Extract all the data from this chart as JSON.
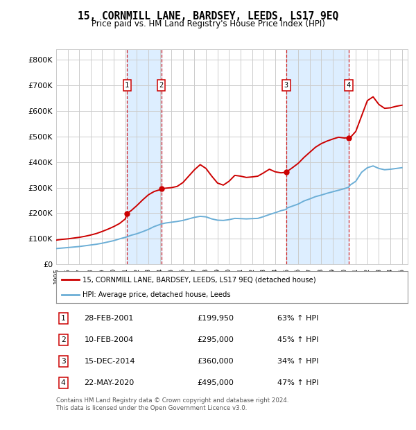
{
  "title": "15, CORNMILL LANE, BARDSEY, LEEDS, LS17 9EQ",
  "subtitle": "Price paid vs. HM Land Registry's House Price Index (HPI)",
  "legend_line1": "15, CORNMILL LANE, BARDSEY, LEEDS, LS17 9EQ (detached house)",
  "legend_line2": "HPI: Average price, detached house, Leeds",
  "footnote": "Contains HM Land Registry data © Crown copyright and database right 2024.\nThis data is licensed under the Open Government Licence v3.0.",
  "sales": [
    {
      "label": "1",
      "date": "28-FEB-2001",
      "price": 199950,
      "pct": "63%",
      "dir": "↑",
      "x_year": 2001.15
    },
    {
      "label": "2",
      "date": "10-FEB-2004",
      "price": 295000,
      "pct": "45%",
      "dir": "↑",
      "x_year": 2004.12
    },
    {
      "label": "3",
      "date": "15-DEC-2014",
      "price": 360000,
      "pct": "34%",
      "dir": "↑",
      "x_year": 2014.96
    },
    {
      "label": "4",
      "date": "22-MAY-2020",
      "price": 495000,
      "pct": "47%",
      "dir": "↑",
      "x_year": 2020.39
    }
  ],
  "hpi_color": "#6baed6",
  "price_color": "#cc0000",
  "shading_color": "#ddeeff",
  "background_color": "#ffffff",
  "grid_color": "#cccccc",
  "ylim": [
    0,
    840000
  ],
  "yticks": [
    0,
    100000,
    200000,
    300000,
    400000,
    500000,
    600000,
    700000,
    800000
  ],
  "xmin": 1995,
  "xmax": 2025.5,
  "hpi_data": {
    "years": [
      1995.0,
      1995.5,
      1996.0,
      1996.5,
      1997.0,
      1997.5,
      1998.0,
      1998.5,
      1999.0,
      1999.5,
      2000.0,
      2000.5,
      2001.0,
      2001.15,
      2001.5,
      2002.0,
      2002.5,
      2003.0,
      2003.5,
      2004.0,
      2004.12,
      2004.5,
      2005.0,
      2005.5,
      2006.0,
      2006.5,
      2007.0,
      2007.5,
      2008.0,
      2008.5,
      2009.0,
      2009.5,
      2010.0,
      2010.5,
      2011.0,
      2011.5,
      2012.0,
      2012.5,
      2013.0,
      2013.5,
      2014.0,
      2014.5,
      2014.96,
      2015.0,
      2015.5,
      2016.0,
      2016.5,
      2017.0,
      2017.5,
      2018.0,
      2018.5,
      2019.0,
      2019.5,
      2020.0,
      2020.39,
      2020.5,
      2021.0,
      2021.5,
      2022.0,
      2022.5,
      2023.0,
      2023.5,
      2024.0,
      2024.5,
      2025.0
    ],
    "values": [
      62000,
      64000,
      66000,
      68000,
      70000,
      73000,
      76000,
      79000,
      83000,
      88000,
      93000,
      100000,
      106000,
      108000,
      114000,
      120000,
      128000,
      137000,
      148000,
      156000,
      158000,
      162000,
      165000,
      168000,
      172000,
      178000,
      184000,
      188000,
      186000,
      178000,
      173000,
      172000,
      175000,
      180000,
      179000,
      178000,
      179000,
      180000,
      187000,
      195000,
      202000,
      210000,
      215000,
      220000,
      228000,
      236000,
      248000,
      256000,
      265000,
      271000,
      278000,
      284000,
      290000,
      296000,
      302000,
      310000,
      325000,
      360000,
      378000,
      385000,
      375000,
      370000,
      372000,
      375000,
      378000
    ]
  },
  "price_hpi_data": {
    "years": [
      1995.0,
      1995.5,
      1996.0,
      1996.5,
      1997.0,
      1997.5,
      1998.0,
      1998.5,
      1999.0,
      1999.5,
      2000.0,
      2000.5,
      2001.0,
      2001.15,
      2001.5,
      2002.0,
      2002.5,
      2003.0,
      2003.5,
      2004.0,
      2004.12,
      2004.5,
      2005.0,
      2005.5,
      2006.0,
      2006.5,
      2007.0,
      2007.5,
      2008.0,
      2008.5,
      2009.0,
      2009.5,
      2010.0,
      2010.5,
      2011.0,
      2011.5,
      2012.0,
      2012.5,
      2013.0,
      2013.5,
      2014.0,
      2014.5,
      2014.96,
      2015.0,
      2015.5,
      2016.0,
      2016.5,
      2017.0,
      2017.5,
      2018.0,
      2018.5,
      2019.0,
      2019.5,
      2020.0,
      2020.39,
      2020.5,
      2021.0,
      2021.5,
      2022.0,
      2022.5,
      2023.0,
      2023.5,
      2024.0,
      2024.5,
      2025.0
    ],
    "values": [
      95000,
      98000,
      100000,
      103000,
      106000,
      110000,
      115000,
      121000,
      129000,
      138000,
      148000,
      160000,
      178000,
      199950,
      210000,
      230000,
      252000,
      272000,
      285000,
      292000,
      295000,
      298000,
      300000,
      305000,
      320000,
      345000,
      370000,
      390000,
      375000,
      345000,
      318000,
      310000,
      325000,
      348000,
      345000,
      340000,
      342000,
      345000,
      358000,
      372000,
      362000,
      358000,
      360000,
      362000,
      378000,
      395000,
      418000,
      438000,
      458000,
      472000,
      482000,
      490000,
      497000,
      494000,
      495000,
      495000,
      520000,
      580000,
      640000,
      655000,
      625000,
      610000,
      612000,
      618000,
      622000
    ]
  }
}
